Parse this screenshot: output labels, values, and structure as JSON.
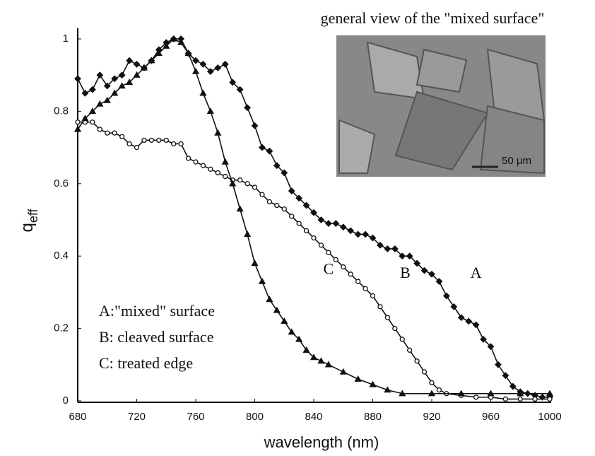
{
  "chart_data": {
    "type": "line",
    "title": "general view of the \"mixed surface\"",
    "x_label": "wavelength (nm)",
    "y_label": {
      "main": "q",
      "sub": "eff"
    },
    "xlim": [
      680,
      1000
    ],
    "xticks": [
      680,
      720,
      760,
      800,
      840,
      880,
      920,
      960,
      1000
    ],
    "ylim": [
      0,
      1
    ],
    "yticks": [
      0,
      0.2,
      0.4,
      0.6,
      0.8,
      1
    ],
    "legend_lines": [
      "A:\"mixed\" surface",
      "B: cleaved surface",
      "C: treated edge"
    ],
    "inset_scale_label": "50 μm",
    "series": [
      {
        "name": "A",
        "color": "#111",
        "marker": "diamond",
        "x": [
          680,
          685,
          690,
          695,
          700,
          705,
          710,
          715,
          720,
          725,
          730,
          735,
          740,
          745,
          750,
          755,
          760,
          765,
          770,
          775,
          780,
          785,
          790,
          795,
          800,
          805,
          810,
          815,
          820,
          825,
          830,
          835,
          840,
          845,
          850,
          855,
          860,
          865,
          870,
          875,
          880,
          885,
          890,
          895,
          900,
          905,
          910,
          915,
          920,
          925,
          930,
          935,
          940,
          945,
          950,
          955,
          960,
          965,
          970,
          975,
          980,
          985,
          990,
          995,
          1000
        ],
        "values": [
          0.89,
          0.85,
          0.86,
          0.9,
          0.87,
          0.89,
          0.9,
          0.94,
          0.93,
          0.92,
          0.94,
          0.97,
          0.99,
          1.0,
          1.0,
          0.96,
          0.94,
          0.93,
          0.91,
          0.92,
          0.93,
          0.88,
          0.86,
          0.81,
          0.76,
          0.7,
          0.69,
          0.65,
          0.63,
          0.58,
          0.56,
          0.54,
          0.52,
          0.5,
          0.49,
          0.49,
          0.48,
          0.47,
          0.46,
          0.46,
          0.45,
          0.43,
          0.42,
          0.42,
          0.4,
          0.4,
          0.38,
          0.36,
          0.35,
          0.33,
          0.29,
          0.26,
          0.23,
          0.22,
          0.21,
          0.17,
          0.15,
          0.1,
          0.07,
          0.04,
          0.025,
          0.02,
          0.015,
          0.01,
          0.01
        ]
      },
      {
        "name": "B",
        "color": "#111",
        "marker": "circle",
        "x": [
          680,
          685,
          690,
          695,
          700,
          705,
          710,
          715,
          720,
          725,
          730,
          735,
          740,
          745,
          750,
          755,
          760,
          765,
          770,
          775,
          780,
          785,
          790,
          795,
          800,
          805,
          810,
          815,
          820,
          825,
          830,
          835,
          840,
          845,
          850,
          855,
          860,
          865,
          870,
          875,
          880,
          885,
          890,
          895,
          900,
          905,
          910,
          915,
          920,
          925,
          930,
          940,
          950,
          960,
          970,
          980,
          990,
          1000
        ],
        "values": [
          0.77,
          0.77,
          0.77,
          0.75,
          0.74,
          0.74,
          0.73,
          0.71,
          0.7,
          0.72,
          0.72,
          0.72,
          0.72,
          0.71,
          0.71,
          0.67,
          0.66,
          0.65,
          0.64,
          0.63,
          0.62,
          0.61,
          0.61,
          0.6,
          0.59,
          0.57,
          0.55,
          0.54,
          0.53,
          0.51,
          0.49,
          0.47,
          0.45,
          0.43,
          0.41,
          0.39,
          0.37,
          0.35,
          0.33,
          0.31,
          0.29,
          0.26,
          0.23,
          0.2,
          0.17,
          0.14,
          0.11,
          0.08,
          0.05,
          0.03,
          0.02,
          0.015,
          0.01,
          0.01,
          0.005,
          0.005,
          0.005,
          0.005
        ]
      },
      {
        "name": "C",
        "color": "#111",
        "marker": "triangle",
        "x": [
          680,
          685,
          690,
          695,
          700,
          705,
          710,
          715,
          720,
          725,
          730,
          735,
          740,
          745,
          750,
          755,
          760,
          765,
          770,
          775,
          780,
          785,
          790,
          795,
          800,
          805,
          810,
          815,
          820,
          825,
          830,
          835,
          840,
          845,
          850,
          860,
          870,
          880,
          890,
          900,
          920,
          940,
          960,
          980,
          1000
        ],
        "values": [
          0.75,
          0.78,
          0.8,
          0.82,
          0.83,
          0.85,
          0.87,
          0.88,
          0.9,
          0.92,
          0.94,
          0.96,
          0.98,
          1.0,
          0.99,
          0.96,
          0.91,
          0.85,
          0.8,
          0.74,
          0.66,
          0.6,
          0.53,
          0.46,
          0.38,
          0.33,
          0.28,
          0.25,
          0.22,
          0.19,
          0.17,
          0.14,
          0.12,
          0.11,
          0.1,
          0.08,
          0.06,
          0.045,
          0.03,
          0.02,
          0.02,
          0.02,
          0.02,
          0.02,
          0.02
        ]
      }
    ],
    "series_label_positions": [
      {
        "x": 950,
        "y": 0.35
      },
      {
        "x": 902,
        "y": 0.35
      },
      {
        "x": 850,
        "y": 0.36
      }
    ]
  }
}
